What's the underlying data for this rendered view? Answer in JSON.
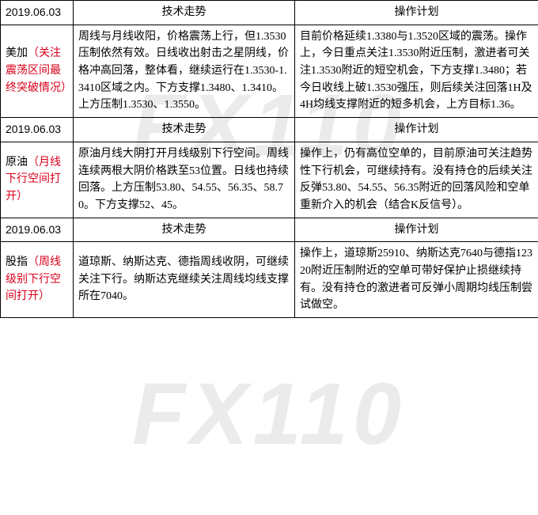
{
  "watermark": "FX110",
  "headers": {
    "trend": "技术走势",
    "plan": "操作计划"
  },
  "sections": [
    {
      "date": "2019.06.03",
      "label_main": "美加",
      "label_note": "（关注震荡区间最终突破情况）",
      "trend": "周线与月线收阳，价格震荡上行，但1.3530压制依然有效。日线收出射击之星阴线，价格冲高回落，整体看，继续运行在1.3530-1.3410区域之内。下方支撑1.3480、1.3410。上方压制1.3530、1.3550。",
      "plan": "目前价格延续1.3380与1.3520区域的震荡。操作上，今日重点关注1.3530附近压制，激进者可关注1.3530附近的短空机会，下方支撑1.3480；若今日收线上破1.3530强压，则后续关注回落1H及4H均线支撑附近的短多机会，上方目标1.36。"
    },
    {
      "date": "2019.06.03",
      "label_main": "原油",
      "label_note": "（月线下行空间打开）",
      "trend": "原油月线大阴打开月线级别下行空间。周线连续两根大阴价格跌至53位置。日线也持续回落。上方压制53.80、54.55、56.35、58.70。下方支撑52、45。",
      "plan": "操作上，仍有高位空单的，目前原油可关注趋势性下行机会，可继续持有。没有持仓的后续关注反弹53.80、54.55、56.35附近的回落风险和空单重新介入的机会（结合K反信号）。"
    },
    {
      "date": "2019.06.03",
      "label_main": "股指",
      "label_note": "（周线级别下行空间打开）",
      "trend": "道琼斯、纳斯达克、德指周线收阴，可继续关注下行。纳斯达克继续关注周线均线支撑所在7040。",
      "plan": "操作上，道琼斯25910、纳斯达克7640与德指12320附近压制附近的空单可带好保护止损继续持有。没有持仓的激进者可反弹小周期均线压制尝试做空。"
    }
  ]
}
